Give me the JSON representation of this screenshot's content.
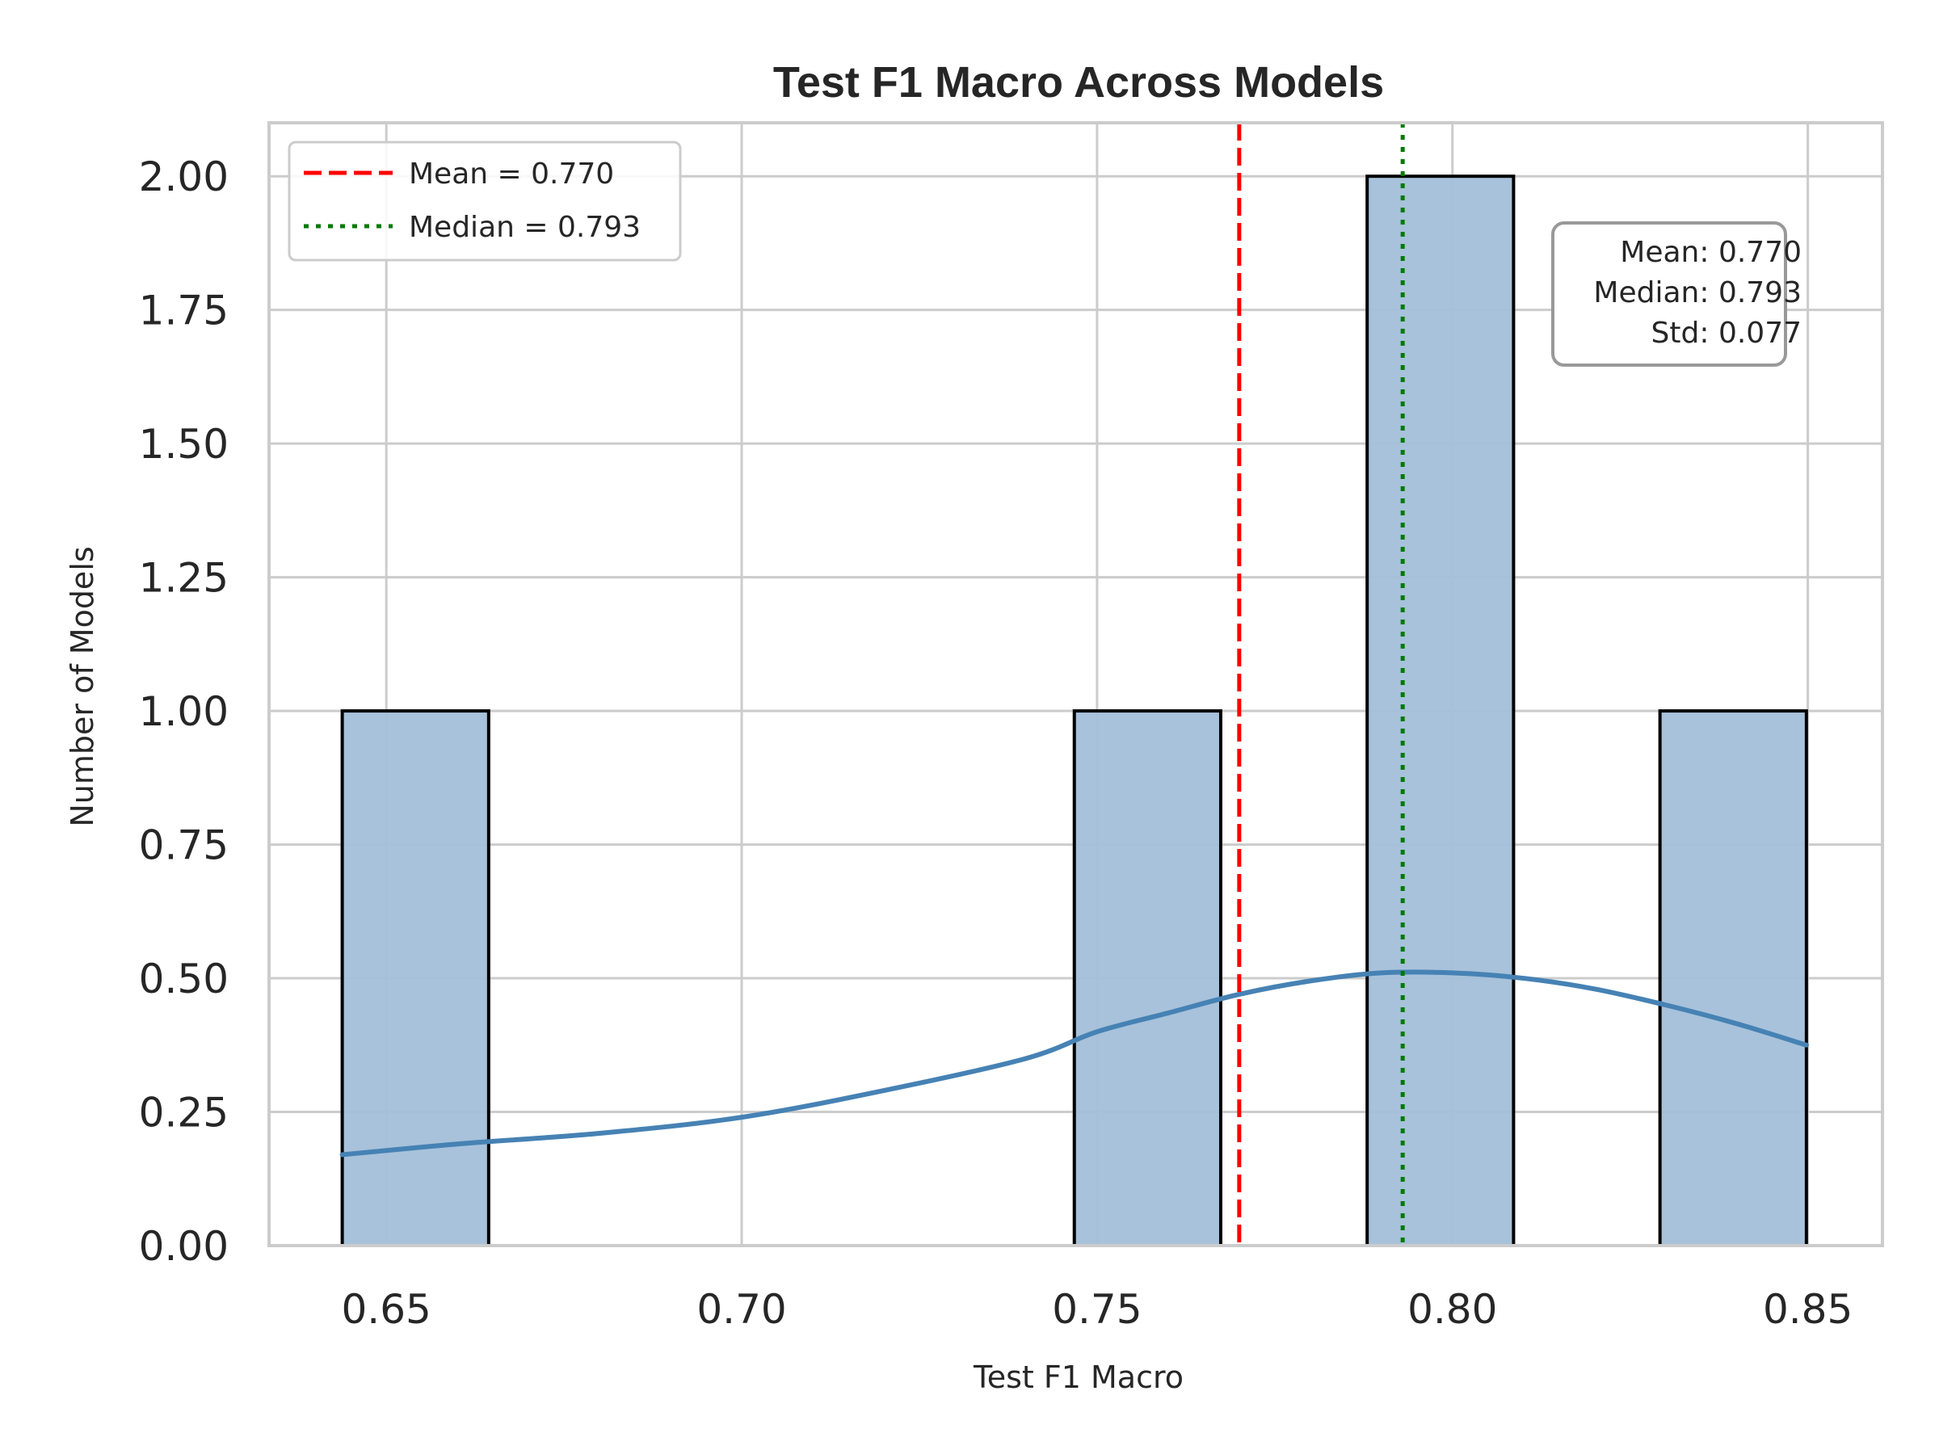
{
  "chart_data": {
    "type": "bar",
    "title": "Test F1 Macro Across Models",
    "xlabel": "Test F1 Macro",
    "ylabel": "Number of Models",
    "xlim": [
      0.6335,
      0.8605
    ],
    "ylim": [
      0,
      2.1
    ],
    "x_ticks": [
      "0.65",
      "0.70",
      "0.75",
      "0.80",
      "0.85"
    ],
    "y_ticks": [
      "0.00",
      "0.25",
      "0.50",
      "0.75",
      "1.00",
      "1.25",
      "1.50",
      "1.75",
      "2.00"
    ],
    "grid": true,
    "bins": [
      {
        "x0": 0.6438,
        "x1": 0.6644,
        "count": 1
      },
      {
        "x0": 0.7468,
        "x1": 0.7674,
        "count": 1
      },
      {
        "x0": 0.788,
        "x1": 0.8086,
        "count": 2
      },
      {
        "x0": 0.8292,
        "x1": 0.8498,
        "count": 1
      }
    ],
    "kde": {
      "x": [
        0.6438,
        0.66,
        0.68,
        0.7,
        0.72,
        0.74,
        0.75,
        0.76,
        0.77,
        0.78,
        0.79,
        0.8,
        0.81,
        0.82,
        0.83,
        0.84,
        0.8498
      ],
      "y": [
        0.17,
        0.19,
        0.21,
        0.24,
        0.29,
        0.35,
        0.4,
        0.435,
        0.47,
        0.495,
        0.51,
        0.51,
        0.5,
        0.48,
        0.45,
        0.415,
        0.375
      ]
    },
    "mean": 0.77,
    "median": 0.793,
    "legend": {
      "position": "top-left",
      "entries": [
        {
          "label": "Mean = 0.770",
          "color": "#ff0000",
          "style": "dashed"
        },
        {
          "label": "Median = 0.793",
          "color": "#007a00",
          "style": "dotted"
        }
      ]
    },
    "stats_box": {
      "position": "top-right",
      "lines": [
        "Mean: 0.770",
        "Median: 0.793",
        "Std: 0.077"
      ]
    },
    "colors": {
      "bar_fill": "#a3bfd9",
      "bar_edge": "#000000",
      "kde_line": "#4682b4",
      "mean_line": "#ff0000",
      "median_line": "#007a00",
      "grid": "#cccccc"
    }
  }
}
